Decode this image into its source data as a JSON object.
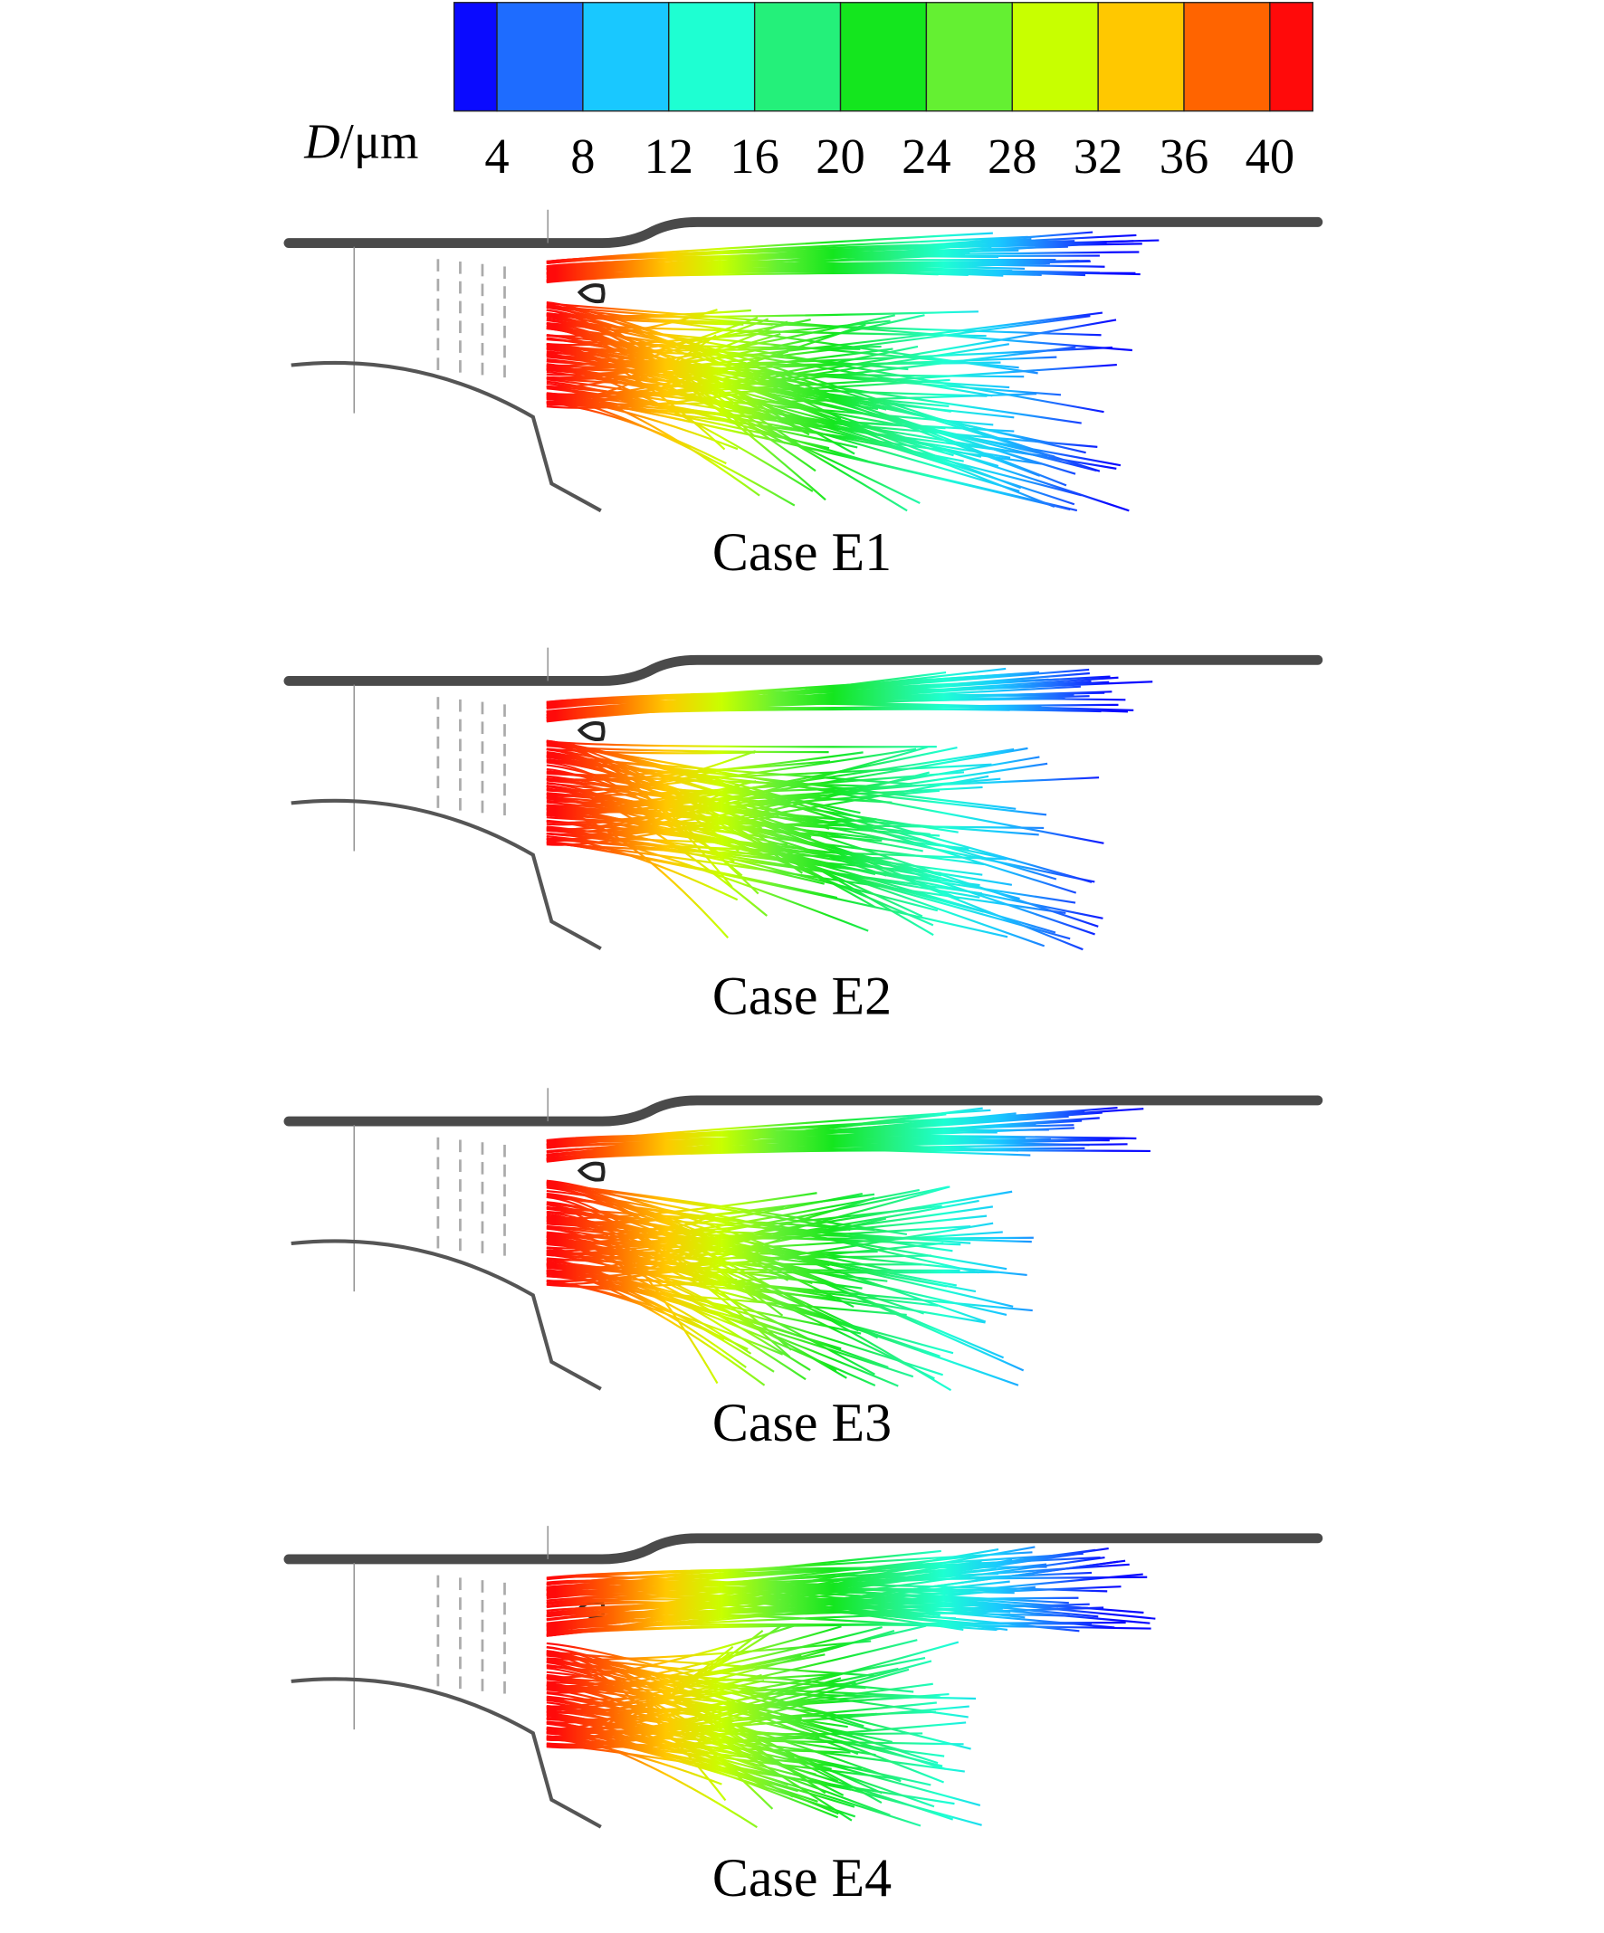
{
  "colorbar": {
    "label": {
      "symbol": "D",
      "unit": "/μm"
    },
    "range": [
      2,
      42
    ],
    "ticks": [
      4,
      8,
      12,
      16,
      20,
      24,
      28,
      32,
      36,
      40
    ],
    "colors": [
      "#0a0aff",
      "#1e6cff",
      "#19c8ff",
      "#1effd2",
      "#24f07a",
      "#14e61e",
      "#64f032",
      "#c8ff00",
      "#ffc800",
      "#ff6400",
      "#ff0a0a"
    ]
  },
  "panels": [
    {
      "caption": "Case E1"
    },
    {
      "caption": "Case E2"
    },
    {
      "caption": "Case E3"
    },
    {
      "caption": "Case E4"
    }
  ]
}
